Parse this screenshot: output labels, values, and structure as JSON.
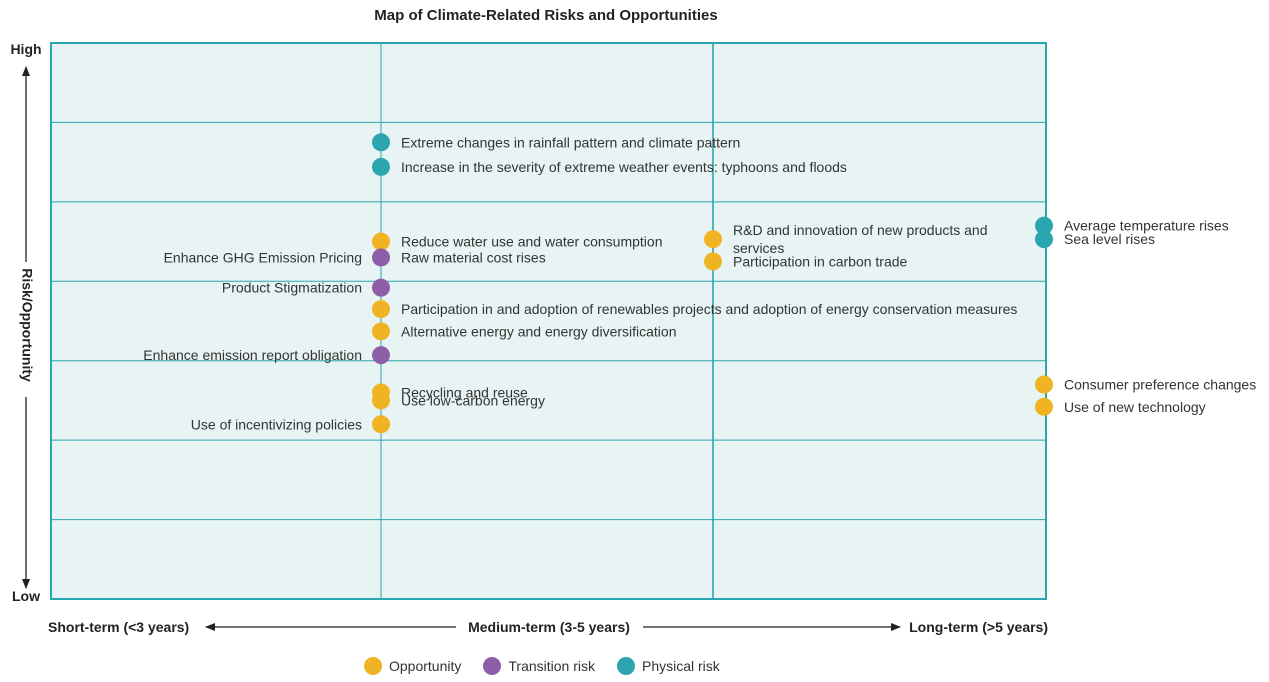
{
  "chart_data": {
    "type": "scatter",
    "title": "Map of Climate-Related Risks and Opportunities",
    "ylabel": "Risk/Opportunity",
    "y_high_label": "High",
    "y_low_label": "Low",
    "x_categories": [
      "Short-term (<3 years)",
      "Medium-term (3-5 years)",
      "Long-term (>5 years)"
    ],
    "x_axis_labels": {
      "short": "Short-term (<3 years)",
      "medium": "Medium-term (3-5 years)",
      "long": "Long-term (>5 years)"
    },
    "ylim": [
      0,
      7
    ],
    "grid": true,
    "legend_position": "bottom",
    "categories": [
      {
        "name": "Opportunity",
        "color": "#F0B323"
      },
      {
        "name": "Transition risk",
        "color": "#8E5FA8"
      },
      {
        "name": "Physical risk",
        "color": "#2BA5B0"
      }
    ],
    "points": [
      {
        "label": "Extreme changes in rainfall  pattern and climate pattern",
        "term": "short",
        "y": 5.75,
        "category": "Physical risk",
        "label_side": "right"
      },
      {
        "label": "Increase in the severity of extreme weather events: typhoons and floods",
        "term": "short",
        "y": 5.44,
        "category": "Physical risk",
        "label_side": "right"
      },
      {
        "label": "Reduce water use and water consumption",
        "term": "short",
        "y": 4.5,
        "category": "Opportunity",
        "label_side": "right"
      },
      {
        "label": "Raw material cost rises",
        "term": "short",
        "y": 4.3,
        "category": "Transition risk",
        "label_side": "right"
      },
      {
        "label": "Enhance GHG Emission Pricing",
        "term": "short",
        "y": 4.3,
        "category": "Transition risk",
        "label_side": "left",
        "label_only": true
      },
      {
        "label": "Product Stigmatization",
        "term": "short",
        "y": 3.92,
        "category": "Transition risk",
        "label_side": "left"
      },
      {
        "label": "Participation in and adoption of renewables projects and adoption of energy conservation measures",
        "term": "short",
        "y": 3.65,
        "category": "Opportunity",
        "label_side": "right"
      },
      {
        "label": "Alternative energy and energy diversification",
        "term": "short",
        "y": 3.37,
        "category": "Opportunity",
        "label_side": "right"
      },
      {
        "label": "Enhance emission report obligation",
        "term": "short",
        "y": 3.07,
        "category": "Transition risk",
        "label_side": "left"
      },
      {
        "label": "Recycling and reuse",
        "term": "short",
        "y": 2.6,
        "category": "Opportunity",
        "label_side": "right"
      },
      {
        "label": "Use low-carbon energy",
        "term": "short",
        "y": 2.5,
        "category": "Opportunity",
        "label_side": "right"
      },
      {
        "label": "Use of incentivizing policies",
        "term": "short",
        "y": 2.2,
        "category": "Opportunity",
        "label_side": "left"
      },
      {
        "label": "R&D and innovation of new products and services",
        "term": "medium",
        "y": 4.53,
        "category": "Opportunity",
        "label_side": "right",
        "label_lines": [
          "R&D and innovation of new products and",
          "services"
        ]
      },
      {
        "label": "Participation in carbon trade",
        "term": "medium",
        "y": 4.25,
        "category": "Opportunity",
        "label_side": "right"
      },
      {
        "label": "Average temperature rises",
        "term": "long",
        "y": 4.7,
        "category": "Physical risk",
        "label_side": "right"
      },
      {
        "label": "Sea level rises",
        "term": "long",
        "y": 4.53,
        "category": "Physical risk",
        "label_side": "right"
      },
      {
        "label": "Consumer preference changes",
        "term": "long",
        "y": 2.7,
        "category": "Opportunity",
        "label_side": "right"
      },
      {
        "label": "Use of new technology",
        "term": "long",
        "y": 2.42,
        "category": "Opportunity",
        "label_side": "right"
      }
    ]
  }
}
